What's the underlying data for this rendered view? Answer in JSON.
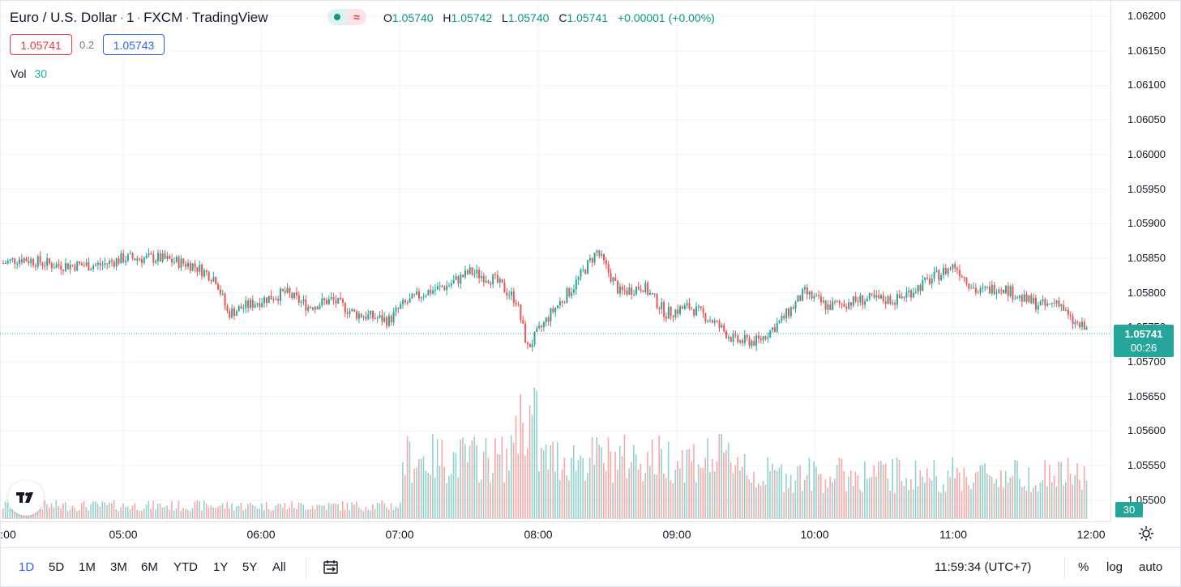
{
  "legend": {
    "symbol": "Euro / U.S. Dollar",
    "interval": "1",
    "exchange": "FXCM",
    "source": "TradingView",
    "ohlc": {
      "o_key": "O",
      "o_val": "1.05740",
      "h_key": "H",
      "h_val": "1.05742",
      "l_key": "L",
      "l_val": "1.05740",
      "c_key": "C",
      "c_val": "1.05741",
      "change": "+0.00001 (+0.00%)"
    },
    "bid": "1.05741",
    "spread": "0.2",
    "ask": "1.05743",
    "vol_label": "Vol",
    "vol_value": "30",
    "status_icon": "dot-icon",
    "delay_icon": "approx-icon"
  },
  "price_axis": {
    "ticks": [
      "1.06200",
      "1.06150",
      "1.06100",
      "1.06050",
      "1.06000",
      "1.05950",
      "1.05900",
      "1.05850",
      "1.05800",
      "1.05750",
      "1.05700",
      "1.05650",
      "1.05600",
      "1.05550",
      "1.05500"
    ],
    "last_price": "1.05741",
    "countdown": "00:26",
    "volume_tag": "30"
  },
  "time_axis": {
    "ticks": [
      ":00",
      "05:00",
      "06:00",
      "07:00",
      "08:00",
      "09:00",
      "10:00",
      "11:00",
      "12:00"
    ]
  },
  "bottom_bar": {
    "ranges": [
      "1D",
      "5D",
      "1M",
      "3M",
      "6M",
      "YTD",
      "1Y",
      "5Y",
      "All"
    ],
    "active_range": "1D",
    "clock": "11:59:34 (UTC+7)",
    "percent_label": "%",
    "log_label": "log",
    "auto_label": "auto"
  },
  "colors": {
    "up": "#26a69a",
    "down": "#ef5350",
    "accent": "#2962ff",
    "grid": "#f0f3fa"
  },
  "chart_data": {
    "type": "candlestick",
    "series": [
      {
        "name": "Euro / U.S. Dollar",
        "anchors_time_price": [
          [
            "04:00",
            1.0581
          ],
          [
            "04:05",
            1.0584
          ],
          [
            "04:15",
            1.0585
          ],
          [
            "04:30",
            1.0584
          ],
          [
            "04:50",
            1.0584
          ],
          [
            "05:00",
            1.0585
          ],
          [
            "05:15",
            1.0585
          ],
          [
            "05:30",
            1.0584
          ],
          [
            "05:40",
            1.0582
          ],
          [
            "05:45",
            1.0577
          ],
          [
            "06:00",
            1.0579
          ],
          [
            "06:10",
            1.058
          ],
          [
            "06:20",
            1.0578
          ],
          [
            "06:30",
            1.0579
          ],
          [
            "06:40",
            1.0577
          ],
          [
            "06:55",
            1.0576
          ],
          [
            "07:00",
            1.0578
          ],
          [
            "07:10",
            1.058
          ],
          [
            "07:20",
            1.0581
          ],
          [
            "07:30",
            1.0583
          ],
          [
            "07:40",
            1.0582
          ],
          [
            "07:50",
            1.0579
          ],
          [
            "07:55",
            1.0572
          ],
          [
            "08:05",
            1.0577
          ],
          [
            "08:15",
            1.0581
          ],
          [
            "08:25",
            1.0586
          ],
          [
            "08:35",
            1.058
          ],
          [
            "08:45",
            1.0581
          ],
          [
            "08:55",
            1.0577
          ],
          [
            "09:05",
            1.0578
          ],
          [
            "09:15",
            1.0576
          ],
          [
            "09:25",
            1.0573
          ],
          [
            "09:35",
            1.0573
          ],
          [
            "09:45",
            1.0576
          ],
          [
            "09:55",
            1.058
          ],
          [
            "10:05",
            1.0578
          ],
          [
            "10:20",
            1.0579
          ],
          [
            "10:35",
            1.0579
          ],
          [
            "10:50",
            1.0582
          ],
          [
            "11:00",
            1.0584
          ],
          [
            "11:10",
            1.058
          ],
          [
            "11:20",
            1.0581
          ],
          [
            "11:30",
            1.0579
          ],
          [
            "11:40",
            1.0578
          ],
          [
            "11:45",
            1.0579
          ],
          [
            "11:50",
            1.0576
          ],
          [
            "12:00",
            1.05741
          ]
        ],
        "last": {
          "open": 1.0574,
          "high": 1.05742,
          "low": 1.0574,
          "close": 1.05741
        }
      }
    ],
    "volume": {
      "last": 30
    },
    "ylim": [
      1.0548,
      1.0622
    ],
    "xlim": [
      "04:00",
      "12:00"
    ],
    "grid": true,
    "xlabel": "",
    "ylabel": ""
  }
}
